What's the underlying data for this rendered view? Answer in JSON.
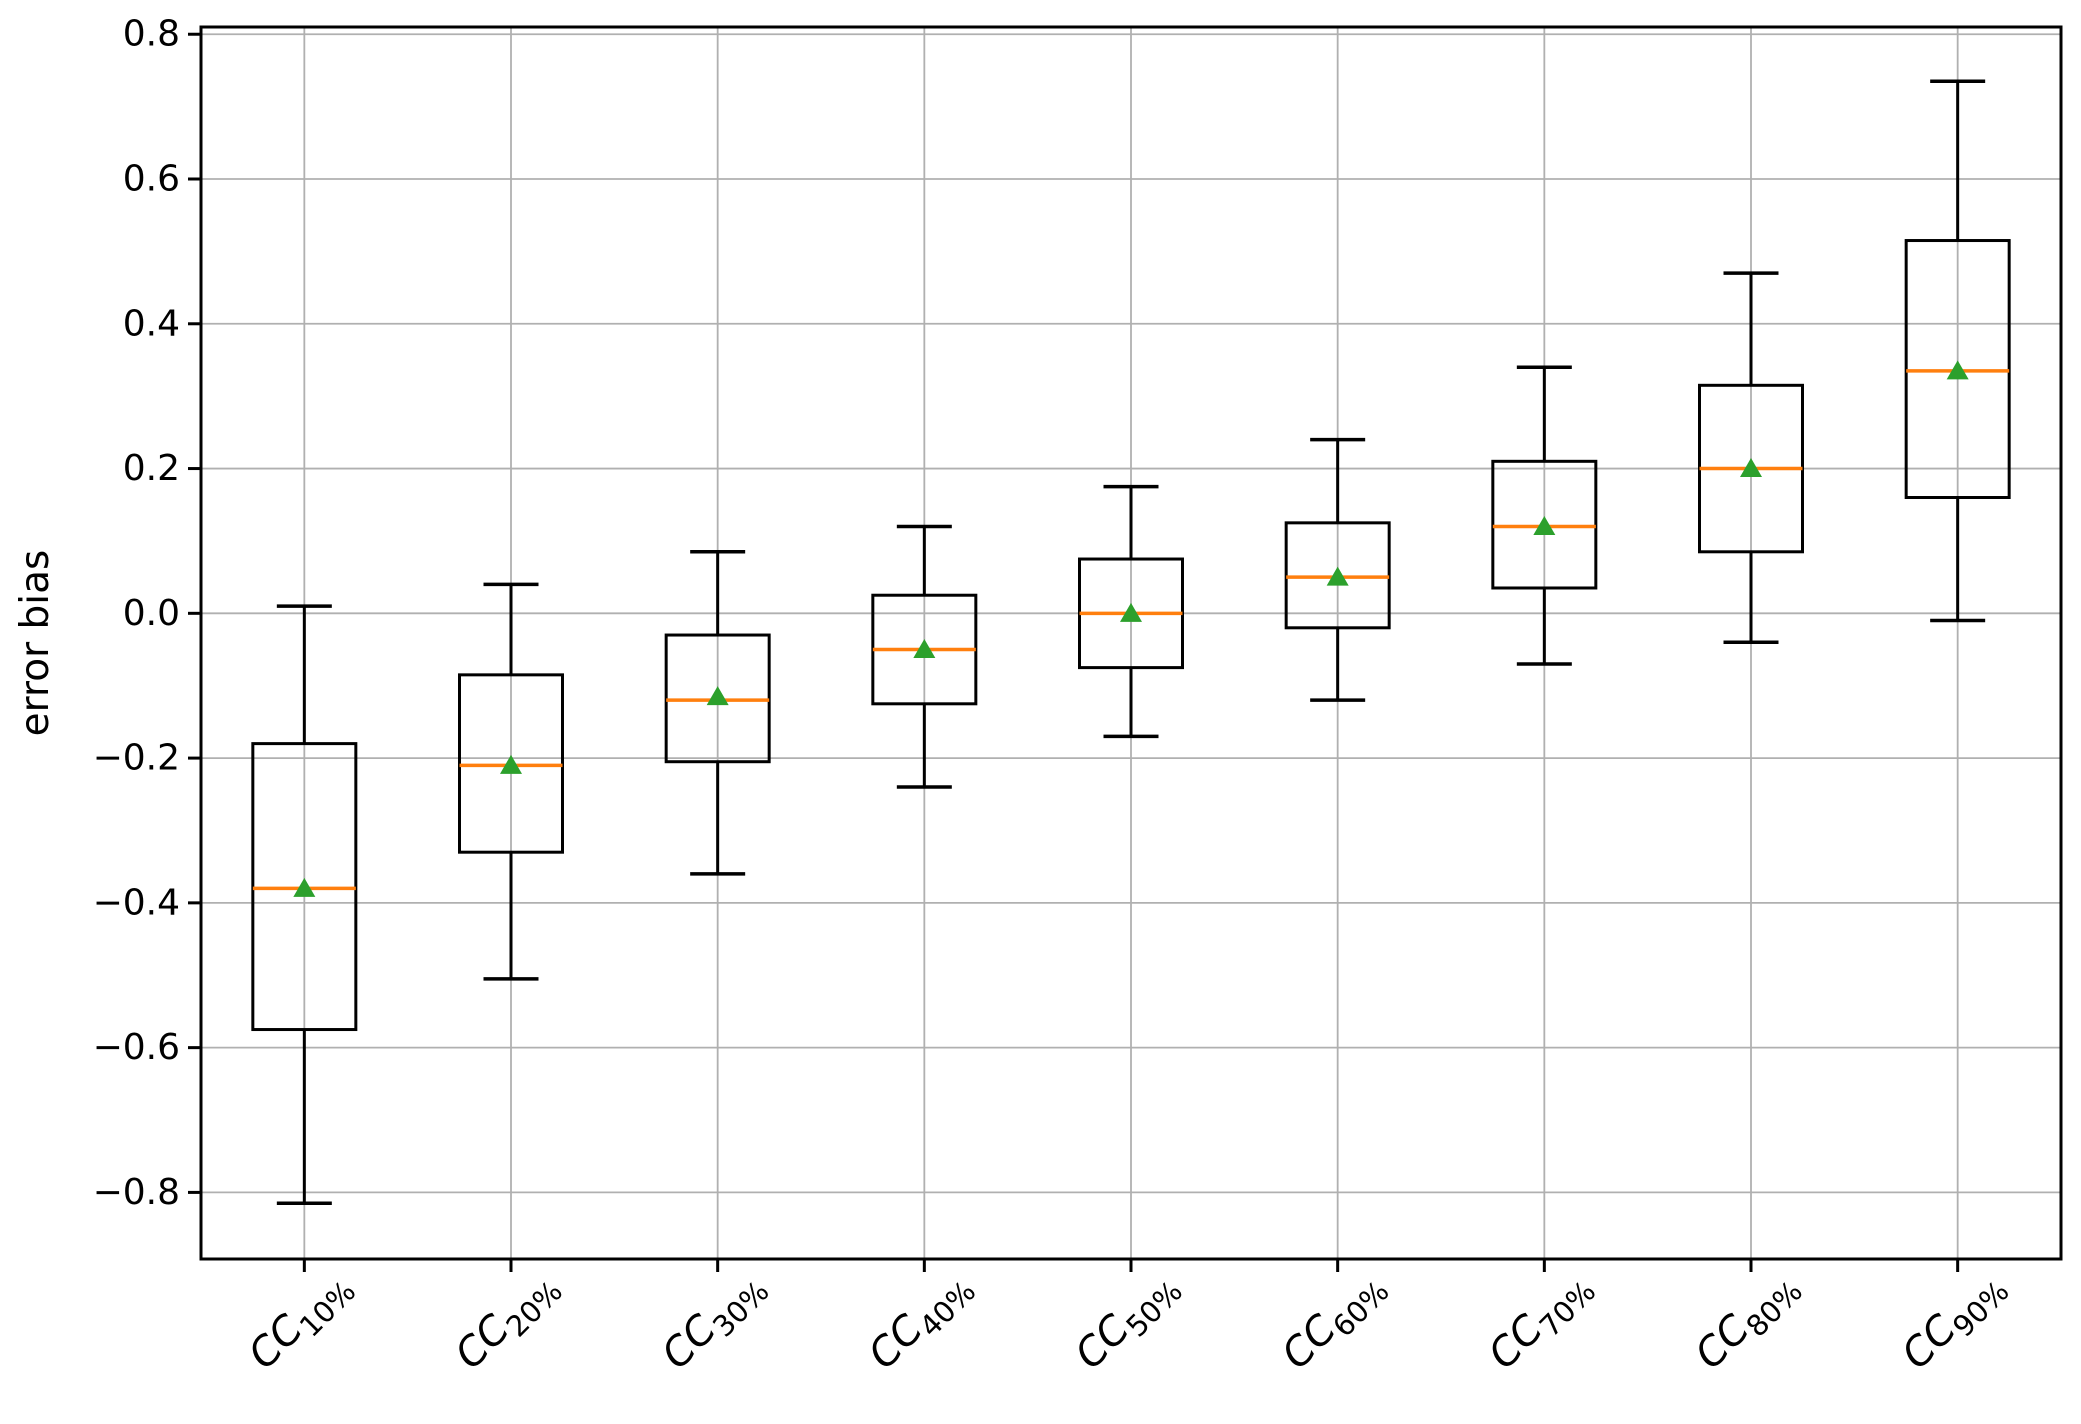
{
  "figure": {
    "background": "#ffffff"
  },
  "axes": {
    "ylabel": "error bias",
    "xlabel": "",
    "title": "",
    "ylim": [
      -0.892,
      0.81
    ],
    "xlim": [
      0.5,
      9.5
    ],
    "ytick_labels": [
      "0.8",
      "0.6",
      "0.4",
      "0.2",
      "0.0",
      "−0.2",
      "−0.4",
      "−0.6",
      "−0.8"
    ],
    "ytick_values": [
      0.8,
      0.6,
      0.4,
      0.2,
      0.0,
      -0.2,
      -0.4,
      -0.6,
      -0.8
    ],
    "grid": "both"
  },
  "chart_data": {
    "type": "box",
    "title": "",
    "xlabel": "",
    "ylabel": "error bias",
    "ylim": [
      -0.892,
      0.81
    ],
    "grid": true,
    "legend": false,
    "categories": [
      {
        "base": "CC",
        "sub": "10%"
      },
      {
        "base": "CC",
        "sub": "20%"
      },
      {
        "base": "CC",
        "sub": "30%"
      },
      {
        "base": "CC",
        "sub": "40%"
      },
      {
        "base": "CC",
        "sub": "50%"
      },
      {
        "base": "CC",
        "sub": "60%"
      },
      {
        "base": "CC",
        "sub": "70%"
      },
      {
        "base": "CC",
        "sub": "80%"
      },
      {
        "base": "CC",
        "sub": "90%"
      }
    ],
    "series": [
      {
        "label": "CC 10%",
        "whisker_low": -0.815,
        "q1": -0.575,
        "median": -0.38,
        "mean": -0.38,
        "q3": -0.18,
        "whisker_high": 0.01
      },
      {
        "label": "CC 20%",
        "whisker_low": -0.505,
        "q1": -0.33,
        "median": -0.21,
        "mean": -0.21,
        "q3": -0.085,
        "whisker_high": 0.04
      },
      {
        "label": "CC 30%",
        "whisker_low": -0.36,
        "q1": -0.205,
        "median": -0.12,
        "mean": -0.115,
        "q3": -0.03,
        "whisker_high": 0.085
      },
      {
        "label": "CC 40%",
        "whisker_low": -0.24,
        "q1": -0.125,
        "median": -0.05,
        "mean": -0.05,
        "q3": 0.025,
        "whisker_high": 0.12
      },
      {
        "label": "CC 50%",
        "whisker_low": -0.17,
        "q1": -0.075,
        "median": 0.0,
        "mean": 0.0,
        "q3": 0.075,
        "whisker_high": 0.175
      },
      {
        "label": "CC 60%",
        "whisker_low": -0.12,
        "q1": -0.02,
        "median": 0.05,
        "mean": 0.05,
        "q3": 0.125,
        "whisker_high": 0.24
      },
      {
        "label": "CC 70%",
        "whisker_low": -0.07,
        "q1": 0.035,
        "median": 0.12,
        "mean": 0.12,
        "q3": 0.21,
        "whisker_high": 0.34
      },
      {
        "label": "CC 80%",
        "whisker_low": -0.04,
        "q1": 0.085,
        "median": 0.2,
        "mean": 0.2,
        "q3": 0.315,
        "whisker_high": 0.47
      },
      {
        "label": "CC 90%",
        "whisker_low": -0.01,
        "q1": 0.16,
        "median": 0.335,
        "mean": 0.335,
        "q3": 0.515,
        "whisker_high": 0.735
      }
    ],
    "colors": {
      "line": "#000000",
      "median": "#ff7f0e",
      "mean": "#2ca02c",
      "grid": "#b0b0b0",
      "background": "#ffffff"
    }
  }
}
